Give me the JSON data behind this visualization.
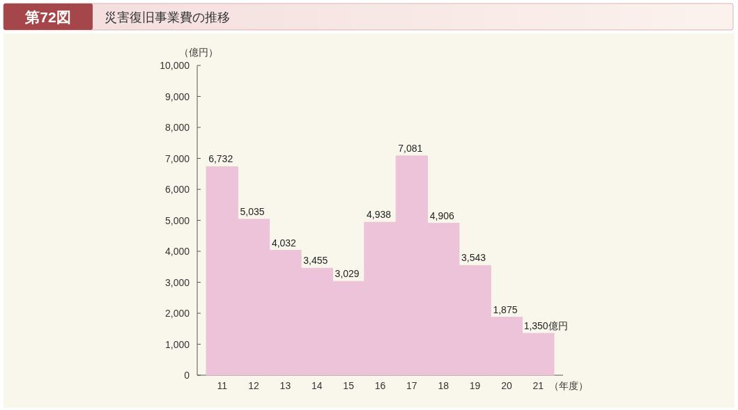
{
  "chart_data": {
    "type": "bar",
    "title": "災害復旧事業費の推移",
    "annotations": [
      "第72図"
    ],
    "ylabel": "（億円）",
    "xlabel": "（年度）",
    "categories": [
      "11",
      "12",
      "13",
      "14",
      "15",
      "16",
      "17",
      "18",
      "19",
      "20",
      "21"
    ],
    "values": [
      6732,
      5035,
      4032,
      3455,
      3029,
      4938,
      7081,
      4906,
      3543,
      1875,
      1350
    ],
    "value_labels": [
      "6,732",
      "5,035",
      "4,032",
      "3,455",
      "3,029",
      "4,938",
      "7,081",
      "4,906",
      "3,543",
      "1,875",
      "1,350億円"
    ],
    "color": "#ecc3d8",
    "ylim": [
      0,
      10000
    ],
    "yticks": [
      0,
      {
        "value": 1000,
        "label": "1,000"
      },
      {
        "value": 2000,
        "label": "2,000"
      },
      {
        "value": 3000,
        "label": "3,000"
      },
      {
        "value": 4000,
        "label": "4,000"
      },
      {
        "value": 5000,
        "label": "5,000"
      },
      {
        "value": 6000,
        "label": "6,000"
      },
      {
        "value": 7000,
        "label": "7,000"
      },
      {
        "value": 8000,
        "label": "8,000"
      },
      {
        "value": 9000,
        "label": "9,000"
      },
      {
        "value": 10000,
        "label": "10,000"
      }
    ],
    "grid": false
  }
}
